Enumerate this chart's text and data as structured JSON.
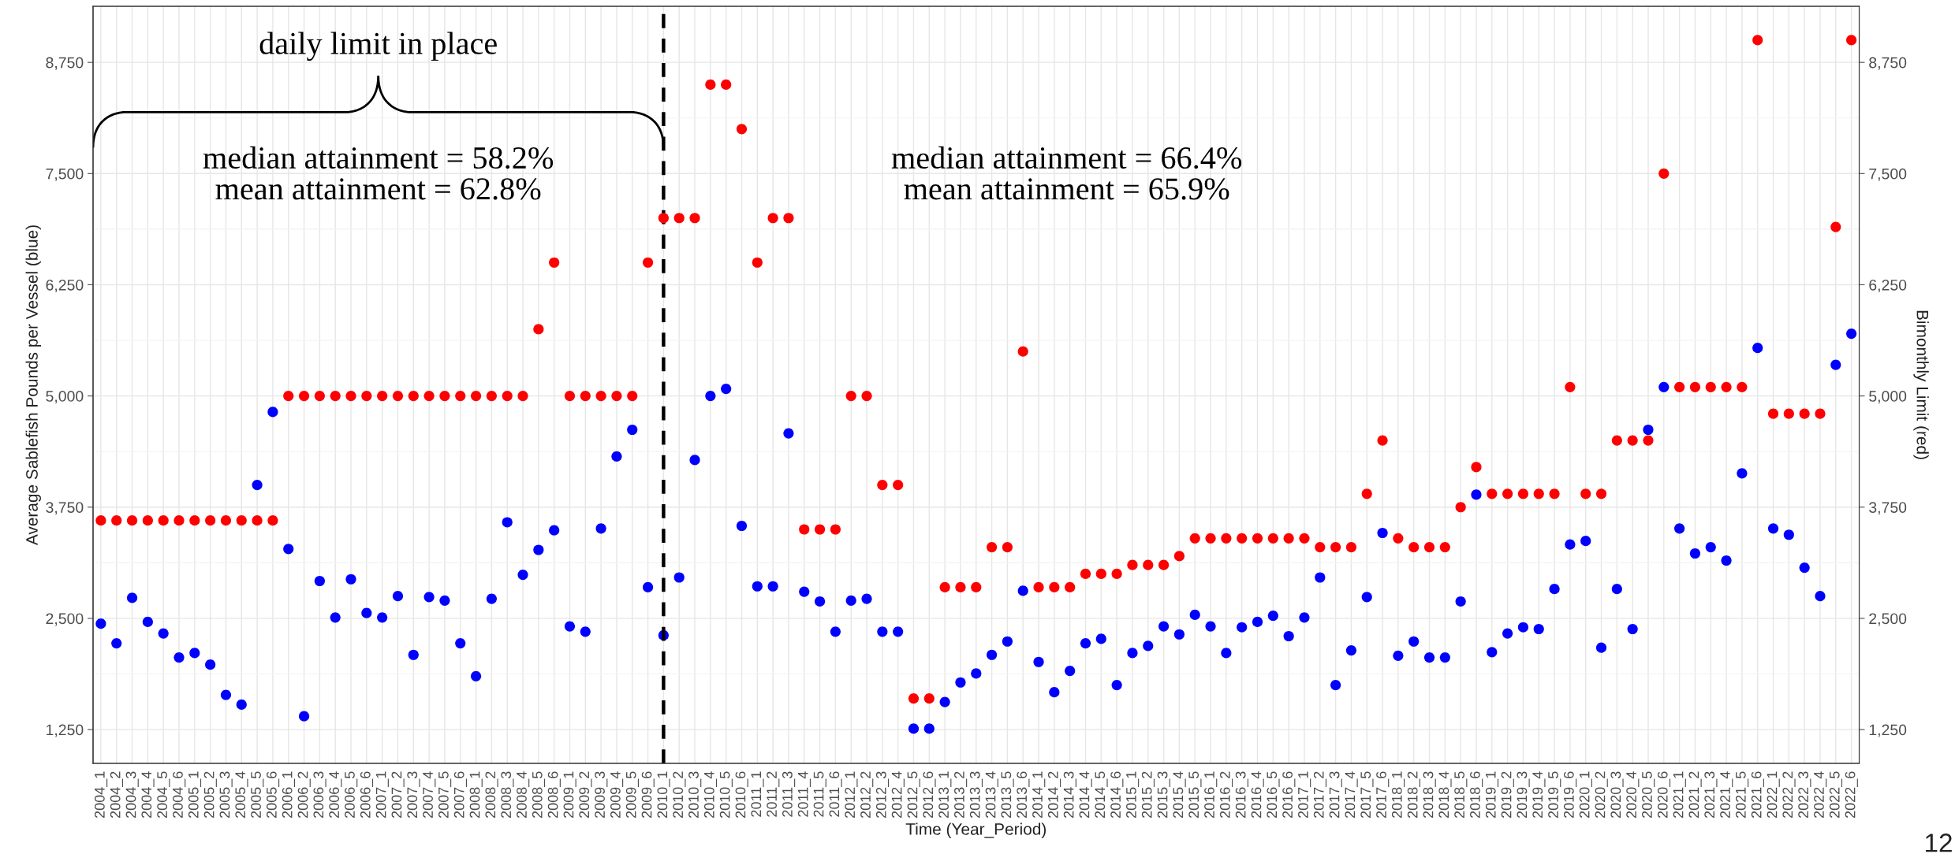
{
  "chart_data": {
    "type": "scatter",
    "xlabel": "Time (Year_Period)",
    "ylabel": "Average Sablefish Pounds per Vessel (blue)",
    "y2label": "Bimonthly Limit (red)",
    "categories": [
      "2004_1",
      "2004_2",
      "2004_3",
      "2004_4",
      "2004_5",
      "2004_6",
      "2005_1",
      "2005_2",
      "2005_3",
      "2005_4",
      "2005_5",
      "2005_6",
      "2006_1",
      "2006_2",
      "2006_3",
      "2006_4",
      "2006_5",
      "2006_6",
      "2007_1",
      "2007_2",
      "2007_3",
      "2007_4",
      "2007_5",
      "2007_6",
      "2008_1",
      "2008_2",
      "2008_3",
      "2008_4",
      "2008_5",
      "2008_6",
      "2009_1",
      "2009_2",
      "2009_3",
      "2009_4",
      "2009_5",
      "2009_6",
      "2010_1",
      "2010_2",
      "2010_3",
      "2010_4",
      "2010_5",
      "2010_6",
      "2011_1",
      "2011_2",
      "2011_3",
      "2011_4",
      "2011_5",
      "2011_6",
      "2012_1",
      "2012_2",
      "2012_3",
      "2012_4",
      "2012_5",
      "2012_6",
      "2013_1",
      "2013_2",
      "2013_3",
      "2013_4",
      "2013_5",
      "2013_6",
      "2014_1",
      "2014_2",
      "2014_3",
      "2014_4",
      "2014_5",
      "2014_6",
      "2015_1",
      "2015_2",
      "2015_3",
      "2015_4",
      "2015_5",
      "2016_1",
      "2016_2",
      "2016_3",
      "2016_4",
      "2016_5",
      "2016_6",
      "2017_1",
      "2017_2",
      "2017_3",
      "2017_4",
      "2017_5",
      "2017_6",
      "2018_1",
      "2018_2",
      "2018_3",
      "2018_4",
      "2018_5",
      "2018_6",
      "2019_1",
      "2019_2",
      "2019_3",
      "2019_4",
      "2019_5",
      "2019_6",
      "2020_1",
      "2020_2",
      "2020_3",
      "2020_4",
      "2020_5",
      "2020_6",
      "2021_1",
      "2021_2",
      "2021_3",
      "2021_4",
      "2021_5",
      "2021_6",
      "2022_1",
      "2022_2",
      "2022_3",
      "2022_4",
      "2022_5",
      "2022_6"
    ],
    "series": [
      {
        "color": "#0000ff",
        "values": [
          2440,
          2220,
          2730,
          2460,
          2330,
          2060,
          2110,
          1980,
          1640,
          1530,
          4000,
          4820,
          3280,
          1400,
          2920,
          2510,
          2940,
          2560,
          2510,
          2750,
          2090,
          2740,
          2700,
          2220,
          1850,
          2720,
          3580,
          2990,
          3270,
          3490,
          2410,
          2350,
          3510,
          4320,
          4620,
          2850,
          2310,
          2960,
          4280,
          5000,
          5080,
          3540,
          2860,
          2860,
          4580,
          2800,
          2690,
          2350,
          2700,
          2720,
          2350,
          2350,
          1260,
          1260,
          1560,
          1780,
          1880,
          2090,
          2240,
          2810,
          2010,
          1670,
          1910,
          2220,
          2270,
          1750,
          2110,
          2190,
          2410,
          2320,
          2540,
          2410,
          2110,
          2400,
          2460,
          2530,
          2300,
          2510,
          2960,
          1750,
          2140,
          2740,
          3460,
          2080,
          2240,
          2060,
          2060,
          2690,
          3890,
          2120,
          2330,
          2400,
          2380,
          2830,
          3330,
          3370,
          2170,
          2830,
          2380,
          4620,
          5100,
          3510,
          3230,
          3300,
          3150,
          4130,
          5540,
          3510,
          3440,
          3070,
          2750,
          5350,
          5700
        ]
      },
      {
        "color": "#ff0000",
        "axis": "y2",
        "values": [
          3600,
          3600,
          3600,
          3600,
          3600,
          3600,
          3600,
          3600,
          3600,
          3600,
          3600,
          3600,
          5000,
          5000,
          5000,
          5000,
          5000,
          5000,
          5000,
          5000,
          5000,
          5000,
          5000,
          5000,
          5000,
          5000,
          5000,
          5000,
          5750,
          6500,
          5000,
          5000,
          5000,
          5000,
          5000,
          6500,
          7000,
          7000,
          7000,
          8500,
          8500,
          8000,
          6500,
          7000,
          7000,
          3500,
          3500,
          3500,
          5000,
          5000,
          4000,
          4000,
          1600,
          1600,
          2850,
          2850,
          2850,
          3300,
          3300,
          5500,
          2850,
          2850,
          2850,
          3000,
          3000,
          3000,
          3100,
          3100,
          3100,
          3200,
          3400,
          3400,
          3400,
          3400,
          3400,
          3400,
          3400,
          3400,
          3300,
          3300,
          3300,
          3900,
          4500,
          3400,
          3300,
          3300,
          3300,
          3750,
          4200,
          3900,
          3900,
          3900,
          3900,
          3900,
          5100,
          3900,
          3900,
          4500,
          4500,
          4500,
          7500,
          5100,
          5100,
          5100,
          5100,
          5100,
          9000,
          4800,
          4800,
          4800,
          4800,
          6900,
          9000
        ]
      }
    ],
    "ylim": [
      870,
      9380
    ],
    "yticks": [
      {
        "value": 1250,
        "label": "1,250"
      },
      {
        "value": 2500,
        "label": "2,500"
      },
      {
        "value": 3750,
        "label": "3,750"
      },
      {
        "value": 5000,
        "label": "5,000"
      },
      {
        "value": 6250,
        "label": "6,250"
      },
      {
        "value": 7500,
        "label": "7,500"
      },
      {
        "value": 8750,
        "label": "8,750"
      }
    ],
    "y2lim": [
      870,
      9380
    ],
    "y2ticks": [
      {
        "value": 1250,
        "label": "1,250"
      },
      {
        "value": 2500,
        "label": "2,500"
      },
      {
        "value": 3750,
        "label": "3,750"
      },
      {
        "value": 5000,
        "label": "5,000"
      },
      {
        "value": 6250,
        "label": "6,250"
      },
      {
        "value": 7500,
        "label": "7,500"
      },
      {
        "value": 8750,
        "label": "8,750"
      }
    ],
    "ref_lines": [
      {
        "axis": "x",
        "value": "2010_1",
        "color": "#000000",
        "line_style": "dashed"
      }
    ],
    "annotations": [
      "daily limit in place",
      "median attainment = 58.2%\nmean attainment = 62.8%",
      "median attainment = 66.4%\nmean attainment = 65.9%",
      "12"
    ],
    "grid": true,
    "marker": "circle"
  }
}
